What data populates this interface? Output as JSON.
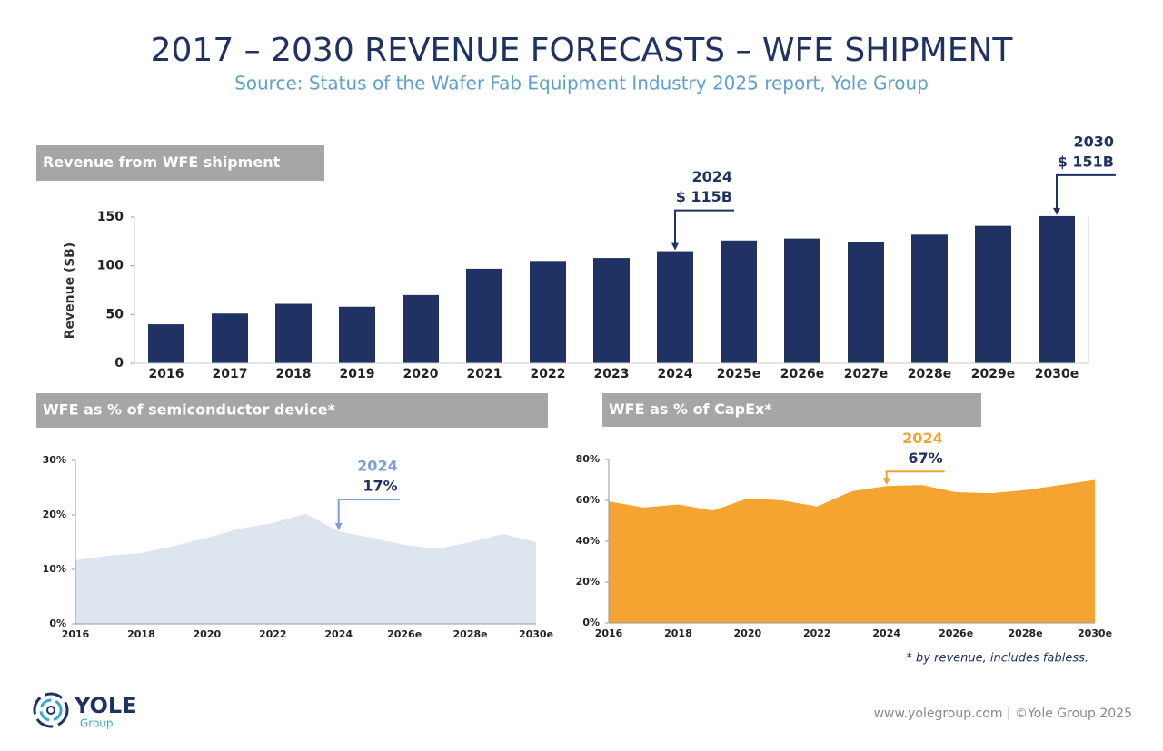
{
  "title": "2017 – 2030 REVENUE FORECASTS – WFE SHIPMENT",
  "subtitle": "Source: Status of the Wafer Fab Equipment Industry 2025  report, Yole Group",
  "footnote": "* by revenue, includes fabless.",
  "footer": "www.yolegroup.com | ©Yole Group 2025",
  "logo": {
    "name": "YOLE",
    "sub": "Group"
  },
  "chart_data": [
    {
      "type": "bar",
      "title": "Revenue from WFE shipment",
      "y_label": "Revenue ($B)",
      "categories": [
        "2016",
        "2017",
        "2018",
        "2019",
        "2020",
        "2021",
        "2022",
        "2023",
        "2024",
        "2025e",
        "2026e",
        "2027e",
        "2028e",
        "2029e",
        "2030e"
      ],
      "values": [
        40,
        51,
        61,
        58,
        70,
        97,
        105,
        108,
        115,
        126,
        128,
        124,
        132,
        141,
        151
      ],
      "color": "#1f3263",
      "ylim": [
        0,
        150
      ],
      "yticks": [
        0,
        50,
        100,
        150
      ],
      "annotations": [
        {
          "year": "2024",
          "label": "$ 115B"
        },
        {
          "year": "2030",
          "label": "$ 151B"
        }
      ]
    },
    {
      "type": "area",
      "title": "WFE as % of semiconductor device*",
      "categories": [
        "2016",
        null,
        "2018",
        null,
        "2020",
        null,
        "2022",
        null,
        "2024",
        null,
        "2026e",
        null,
        "2028e",
        null,
        "2030e"
      ],
      "values": [
        11.7,
        12.5,
        13,
        14.3,
        15.8,
        17.5,
        18.5,
        20.2,
        17,
        15.8,
        14.5,
        13.8,
        15,
        16.5,
        15
      ],
      "color": "#dde5ef",
      "accent": "#7f9fd4",
      "ylim": [
        0,
        30
      ],
      "yticks": [
        {
          "value": 0,
          "label": "0%"
        },
        {
          "value": 10,
          "label": "10%"
        },
        {
          "value": 20,
          "label": "20%"
        },
        {
          "value": 30,
          "label": "30%"
        }
      ],
      "annotations": [
        {
          "year": "2024",
          "label": "17%"
        }
      ]
    },
    {
      "type": "area",
      "title": "WFE as % of CapEx*",
      "categories": [
        "2016",
        null,
        "2018",
        null,
        "2020",
        null,
        "2022",
        null,
        "2024",
        null,
        "2026e",
        null,
        "2028e",
        null,
        "2030e"
      ],
      "values": [
        59.5,
        56.5,
        58,
        55,
        61,
        60,
        57,
        64.5,
        67,
        67.5,
        64,
        63.5,
        65,
        67.5,
        70
      ],
      "color": "#f5a431",
      "accent": "#f5a431",
      "ylim": [
        0,
        80
      ],
      "yticks": [
        {
          "value": 0,
          "label": "0%"
        },
        {
          "value": 20,
          "label": "20%"
        },
        {
          "value": 40,
          "label": "40%"
        },
        {
          "value": 60,
          "label": "60%"
        },
        {
          "value": 80,
          "label": "80%"
        }
      ],
      "annotations": [
        {
          "year": "2024",
          "label": "67%"
        }
      ]
    }
  ]
}
